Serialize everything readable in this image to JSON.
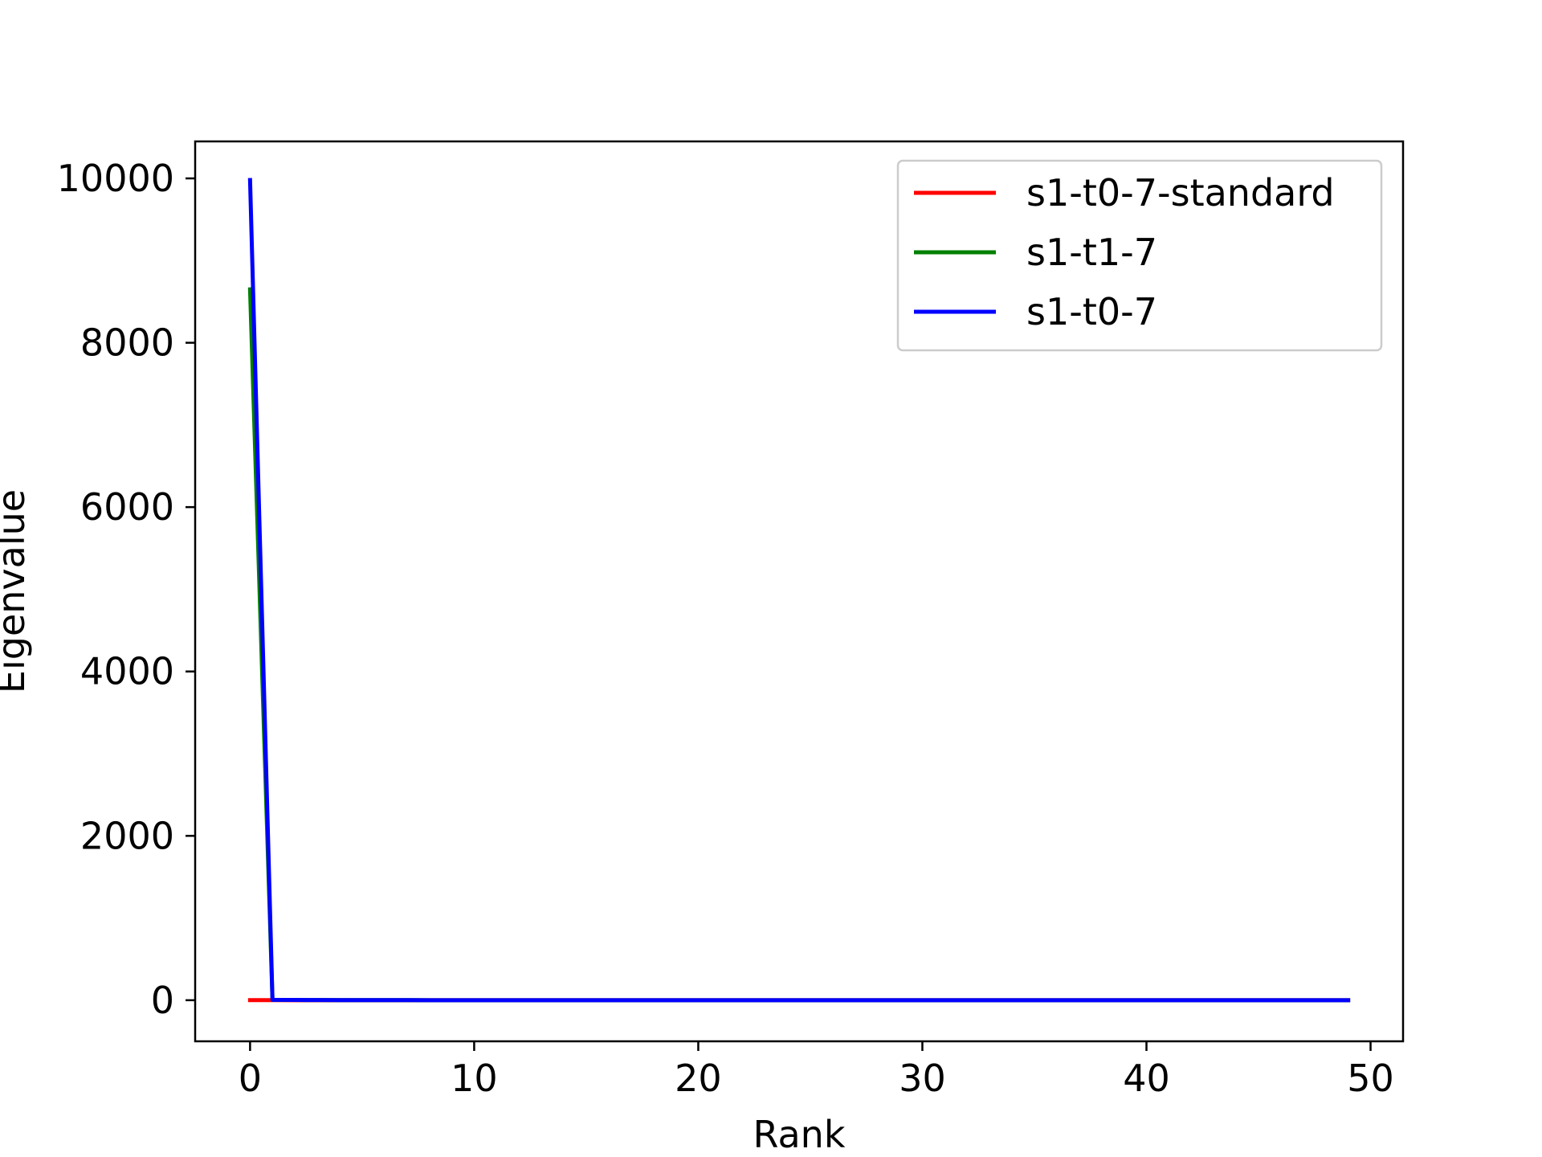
{
  "chart_data": {
    "type": "line",
    "title": "",
    "xlabel": "Rank",
    "ylabel": "Eigenvalue",
    "xlim": [
      -2.45,
      51.45
    ],
    "ylim": [
      -500,
      10450
    ],
    "xticks": [
      0,
      10,
      20,
      30,
      40,
      50
    ],
    "yticks": [
      0,
      2000,
      4000,
      6000,
      8000,
      10000
    ],
    "legend_position": "top-right",
    "grid": false,
    "x": [
      0,
      1,
      2,
      3,
      4,
      5,
      6,
      7,
      8,
      9,
      10,
      11,
      12,
      13,
      14,
      15,
      16,
      17,
      18,
      19,
      20,
      21,
      22,
      23,
      24,
      25,
      26,
      27,
      28,
      29,
      30,
      31,
      32,
      33,
      34,
      35,
      36,
      37,
      38,
      39,
      40,
      41,
      42,
      43,
      44,
      45,
      46,
      47,
      48,
      49
    ],
    "series": [
      {
        "name": "s1-t0-7-standard",
        "color": "#ff0000",
        "values": [
          1,
          1,
          0,
          0,
          0,
          0,
          0,
          0,
          0,
          0,
          0,
          0,
          0,
          0,
          0,
          0,
          0,
          0,
          0,
          0,
          0,
          0,
          0,
          0,
          0,
          0,
          0,
          0,
          0,
          0,
          0,
          0,
          0,
          0,
          0,
          0,
          0,
          0,
          0,
          0,
          0,
          0,
          0,
          0,
          0,
          0,
          0,
          0,
          0,
          0
        ]
      },
      {
        "name": "s1-t1-7",
        "color": "#008000",
        "values": [
          8650,
          5,
          3,
          2,
          1,
          1,
          1,
          1,
          0,
          0,
          0,
          0,
          0,
          0,
          0,
          0,
          0,
          0,
          0,
          0,
          0,
          0,
          0,
          0,
          0,
          0,
          0,
          0,
          0,
          0,
          0,
          0,
          0,
          0,
          0,
          0,
          0,
          0,
          0,
          0,
          0,
          0,
          0,
          0,
          0,
          0,
          0,
          0,
          0,
          0
        ]
      },
      {
        "name": "s1-t0-7",
        "color": "#0000ff",
        "values": [
          9980,
          5,
          3,
          2,
          1,
          1,
          1,
          1,
          0,
          0,
          0,
          0,
          0,
          0,
          0,
          0,
          0,
          0,
          0,
          0,
          0,
          0,
          0,
          0,
          0,
          0,
          0,
          0,
          0,
          0,
          0,
          0,
          0,
          0,
          0,
          0,
          0,
          0,
          0,
          0,
          0,
          0,
          0,
          0,
          0,
          0,
          0,
          0,
          0,
          0
        ]
      }
    ]
  }
}
